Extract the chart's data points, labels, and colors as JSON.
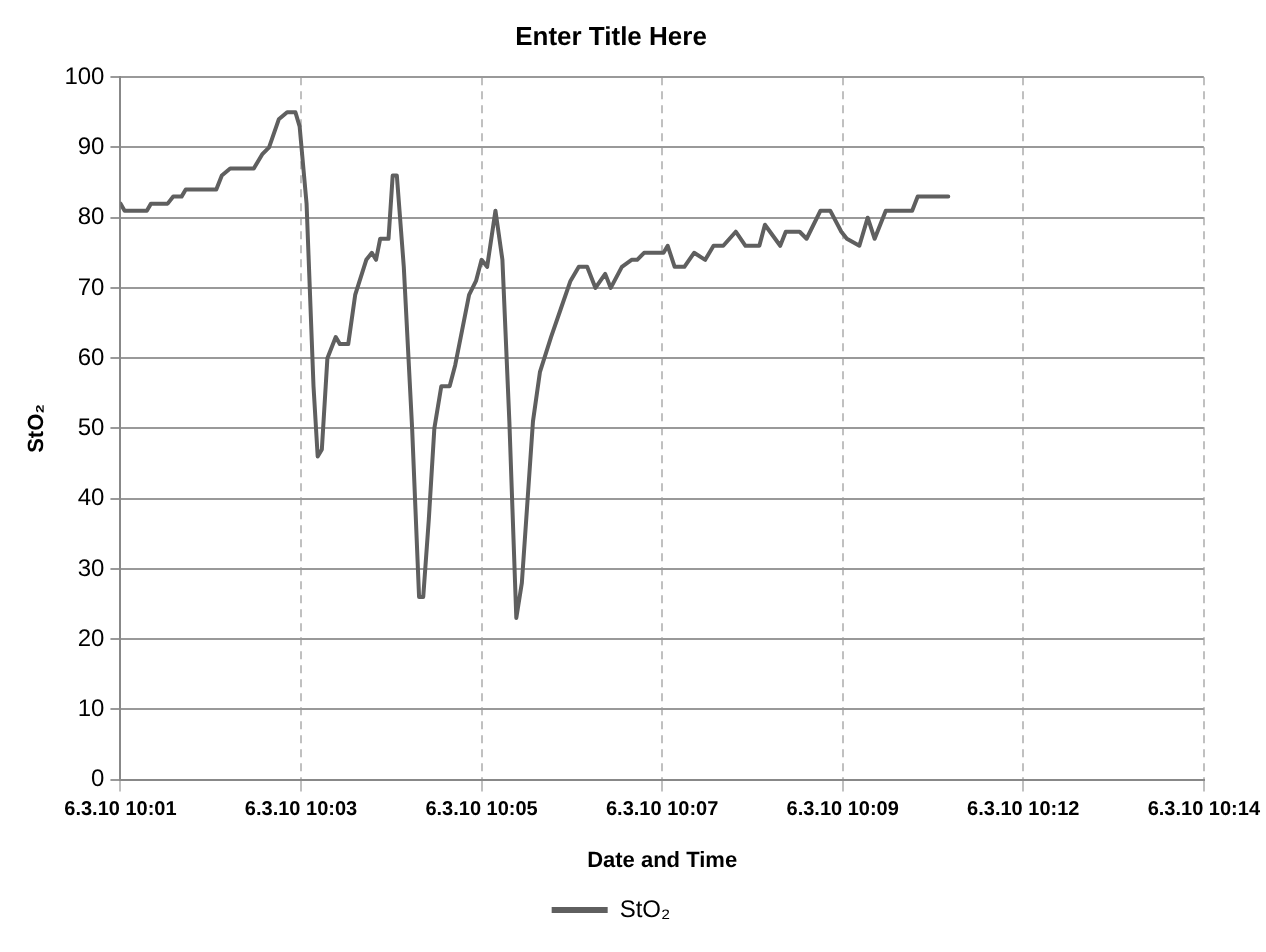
{
  "chart_data": {
    "type": "line",
    "title": "Enter Title Here",
    "xlabel": "Date and Time",
    "ylabel": "StO₂",
    "x": [
      "--03-06T10:01:00",
      "--03-06T10:01:03",
      "--03-06T10:01:19",
      "--03-06T10:01:22",
      "--03-06T10:01:34",
      "--03-06T10:01:38",
      "--03-06T10:01:44",
      "--03-06T10:01:47",
      "--03-06T10:02:09",
      "--03-06T10:02:13",
      "--03-06T10:02:19",
      "--03-06T10:02:36",
      "--03-06T10:02:42",
      "--03-06T10:02:47",
      "--03-06T10:02:54",
      "--03-06T10:03:00",
      "--03-06T10:03:06",
      "--03-06T10:03:09",
      "--03-06T10:03:14",
      "--03-06T10:03:19",
      "--03-06T10:03:22",
      "--03-06T10:03:25",
      "--03-06T10:03:29",
      "--03-06T10:03:35",
      "--03-06T10:03:38",
      "--03-06T10:03:44",
      "--03-06T10:03:49",
      "--03-06T10:03:57",
      "--03-06T10:04:01",
      "--03-06T10:04:04",
      "--03-06T10:04:07",
      "--03-06T10:04:13",
      "--03-06T10:04:16",
      "--03-06T10:04:19",
      "--03-06T10:04:24",
      "--03-06T10:04:30",
      "--03-06T10:04:35",
      "--03-06T10:04:38",
      "--03-06T10:04:42",
      "--03-06T10:04:46",
      "--03-06T10:04:51",
      "--03-06T10:04:57",
      "--03-06T10:05:01",
      "--03-06T10:05:06",
      "--03-06T10:05:11",
      "--03-06T10:05:16",
      "--03-06T10:05:20",
      "--03-06T10:05:24",
      "--03-06T10:05:30",
      "--03-06T10:05:35",
      "--03-06T10:05:40",
      "--03-06T10:05:45",
      "--03-06T10:05:49",
      "--03-06T10:05:57",
      "--03-06T10:06:02",
      "--03-06T10:06:10",
      "--03-06T10:06:17",
      "--03-06T10:06:24",
      "--03-06T10:06:30",
      "--03-06T10:06:36",
      "--03-06T10:06:42",
      "--03-06T10:06:49",
      "--03-06T10:06:53",
      "--03-06T10:07:01",
      "--03-06T10:07:08",
      "--03-06T10:07:12",
      "--03-06T10:07:17",
      "--03-06T10:07:31",
      "--03-06T10:07:34",
      "--03-06T10:07:39",
      "--03-06T10:07:46",
      "--03-06T10:07:53",
      "--03-06T10:08:01",
      "--03-06T10:08:07",
      "--03-06T10:08:14",
      "--03-06T10:08:23",
      "--03-06T10:08:30",
      "--03-06T10:08:40",
      "--03-06T10:08:44",
      "--03-06T10:08:55",
      "--03-06T10:08:59",
      "--03-06T10:09:09",
      "--03-06T10:09:14",
      "--03-06T10:09:24",
      "--03-06T10:09:31",
      "--03-06T10:09:39",
      "--03-06T10:09:43",
      "--03-06T10:09:52",
      "--03-06T10:09:58",
      "--03-06T10:10:03",
      "--03-06T10:10:11",
      "--03-06T10:10:18",
      "--03-06T10:10:30",
      "--03-06T10:10:34",
      "--03-06T10:10:56"
    ],
    "series": [
      {
        "name": "StO₂",
        "color": "#5f5f5f",
        "values": [
          82,
          81,
          81,
          82,
          82,
          83,
          83,
          84,
          84,
          86,
          87,
          87,
          89,
          90,
          94,
          95,
          95,
          93,
          82,
          56,
          46,
          47,
          60,
          63,
          62,
          62,
          69,
          74,
          75,
          74,
          77,
          77,
          86,
          86,
          73,
          50,
          26,
          26,
          37,
          50,
          56,
          56,
          59,
          64,
          69,
          71,
          74,
          73,
          81,
          74,
          51,
          23,
          28,
          51,
          58,
          63,
          67,
          71,
          73,
          73,
          70,
          72,
          70,
          73,
          74,
          74,
          75,
          75,
          76,
          73,
          73,
          75,
          74,
          76,
          76,
          78,
          76,
          76,
          79,
          76,
          78,
          78,
          77,
          81,
          81,
          78,
          77,
          76,
          80,
          77,
          81,
          81,
          81,
          83,
          83
        ]
      }
    ],
    "xlim": [
      "--03-06T10:01:00",
      "--03-06T10:14:00"
    ],
    "xticks": [
      {
        "value": "--03-06T10:01:00",
        "label": "6.3.10 10:01"
      },
      {
        "value": "--03-06T10:03:10",
        "label": "6.3.10 10:03"
      },
      {
        "value": "--03-06T10:05:20",
        "label": "6.3.10 10:05"
      },
      {
        "value": "--03-06T10:07:30",
        "label": "6.3.10 10:07"
      },
      {
        "value": "--03-06T10:09:40",
        "label": "6.3.10 10:09"
      },
      {
        "value": "--03-06T10:11:50",
        "label": "6.3.10 10:12"
      },
      {
        "value": "--03-06T10:14:00",
        "label": "6.3.10 10:14"
      }
    ],
    "ylim": [
      0,
      100
    ],
    "yticks": [
      0,
      10,
      20,
      30,
      40,
      50,
      60,
      70,
      80,
      90,
      100
    ],
    "grid": true,
    "legend": "bottom",
    "marker": "none",
    "line_style": "solid"
  }
}
